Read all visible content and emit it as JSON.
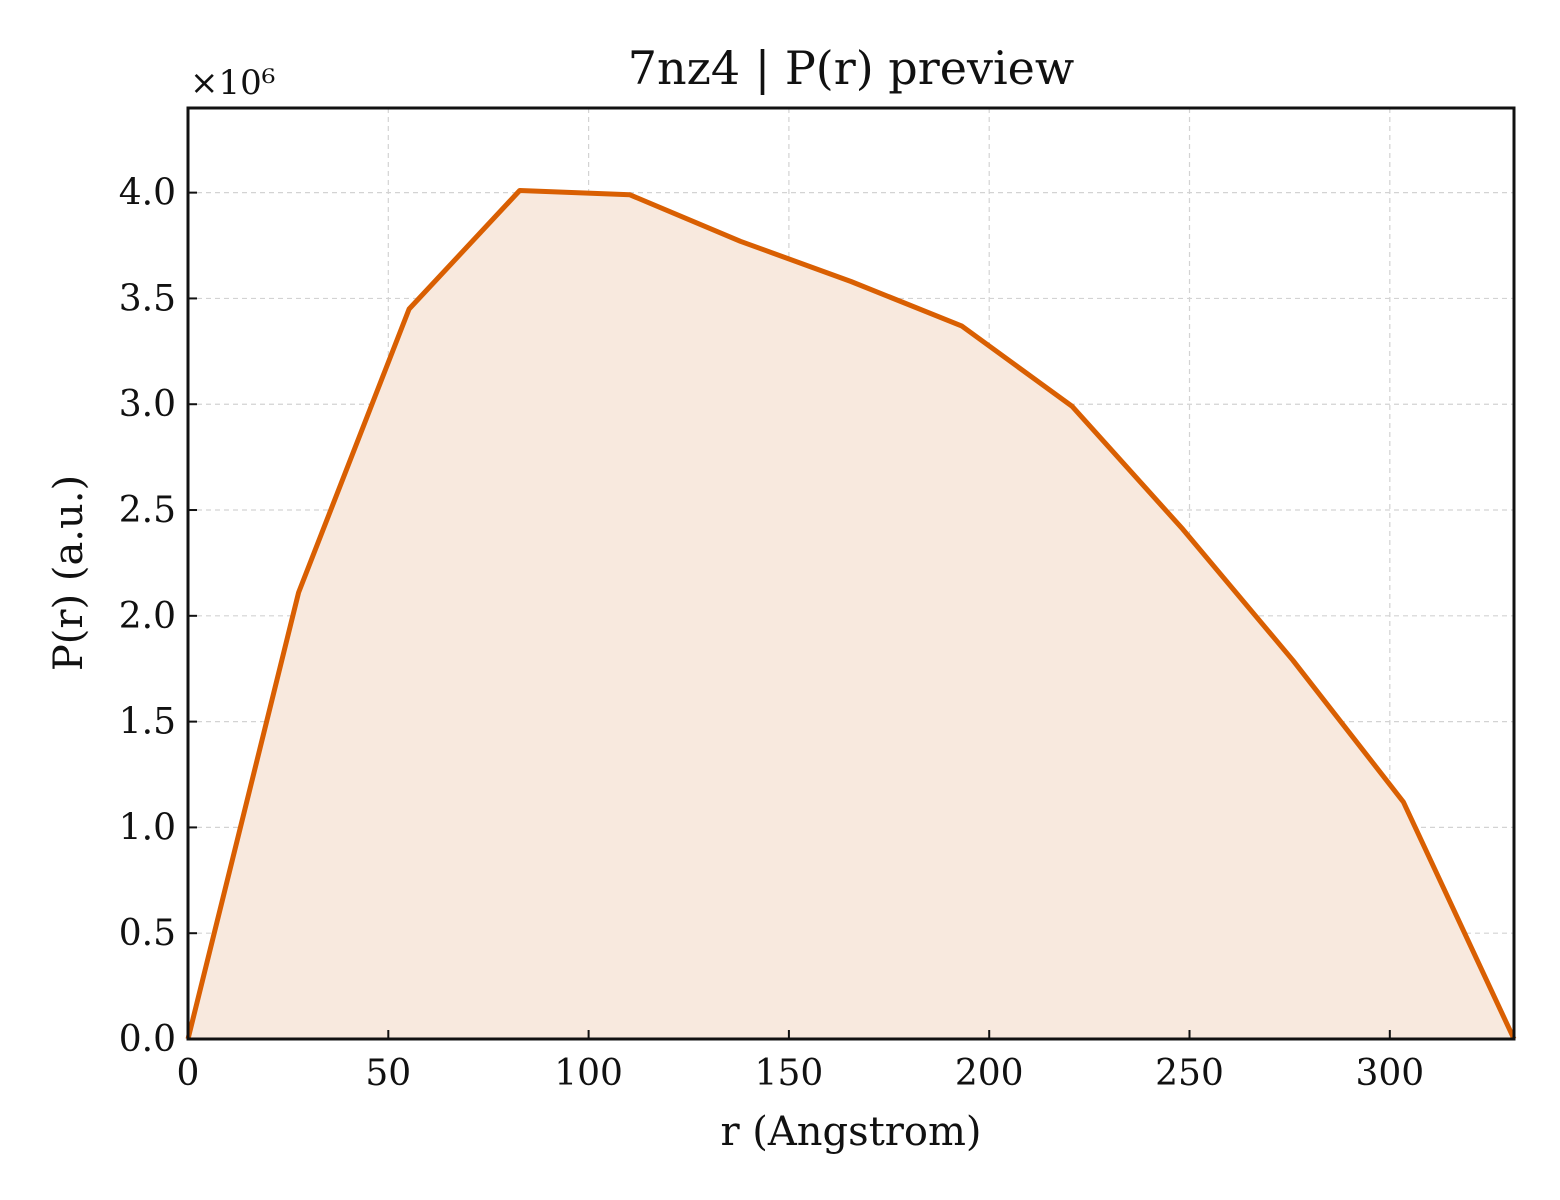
{
  "chart_data": {
    "type": "area",
    "title": "7nz4 | P(r) preview",
    "xlabel": "r (Angstrom)",
    "ylabel": "P(r) (a.u.)",
    "y_multiplier_label": "×10⁶",
    "y_scale_factor": 1000000,
    "xlim": [
      0,
      331
    ],
    "ylim": [
      0,
      4.4
    ],
    "x_ticks": [
      0,
      50,
      100,
      150,
      200,
      250,
      300
    ],
    "y_ticks": [
      0.0,
      0.5,
      1.0,
      1.5,
      2.0,
      2.5,
      3.0,
      3.5,
      4.0
    ],
    "x_tick_labels": [
      "0",
      "50",
      "100",
      "150",
      "200",
      "250",
      "300"
    ],
    "y_tick_labels": [
      "0.0",
      "0.5",
      "1.0",
      "1.5",
      "2.0",
      "2.5",
      "3.0",
      "3.5",
      "4.0"
    ],
    "grid": true,
    "line_color": "#d95f02",
    "fill_color": "#f8e9de",
    "series": [
      {
        "x": [
          0,
          27.6,
          55.2,
          82.8,
          110.3,
          137.9,
          165.5,
          193.1,
          220.7,
          248.3,
          275.8,
          303.4,
          331
        ],
        "y": [
          0.0,
          2.11,
          3.45,
          4.01,
          3.99,
          3.77,
          3.58,
          3.37,
          2.99,
          2.41,
          1.79,
          1.12,
          0.0
        ]
      }
    ]
  }
}
